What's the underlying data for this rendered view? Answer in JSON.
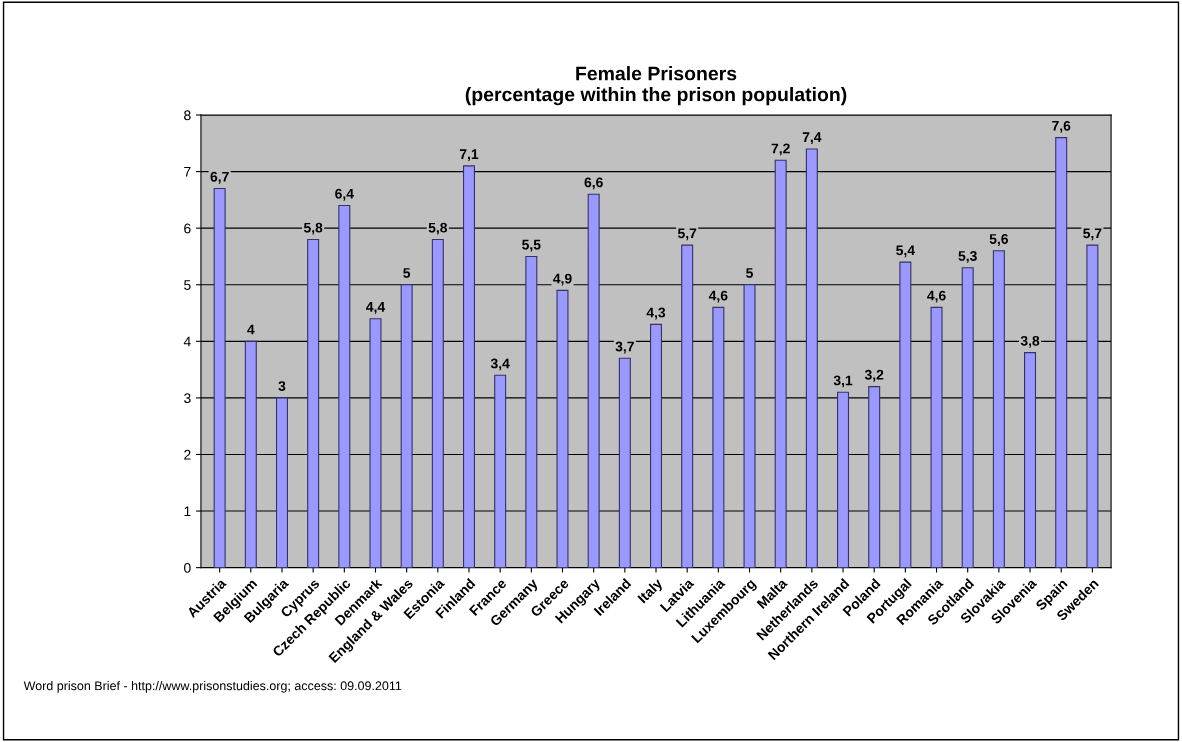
{
  "chart_data": {
    "type": "bar",
    "title": "Female Prisoners\n(percentage within the prison population)",
    "categories": [
      "Austria",
      "Belgium",
      "Bulgaria",
      "Cyprus",
      "Czech Republic",
      "Denmark",
      "England & Wales",
      "Estonia",
      "Finland",
      "France",
      "Germany",
      "Greece",
      "Hungary",
      "Ireland",
      "Italy",
      "Latvia",
      "Lithuania",
      "Luxembourg",
      "Malta",
      "Netherlands",
      "Northern Ireland",
      "Poland",
      "Portugal",
      "Romania",
      "Scotland",
      "Slovakia",
      "Slovenia",
      "Spain",
      "Sweden"
    ],
    "values": [
      6.7,
      4,
      3,
      5.8,
      6.4,
      4.4,
      5,
      5.8,
      7.1,
      3.4,
      5.5,
      4.9,
      6.6,
      3.7,
      4.3,
      5.7,
      4.6,
      5,
      7.2,
      7.4,
      3.1,
      3.2,
      5.4,
      4.6,
      5.3,
      5.6,
      3.8,
      7.6,
      5.7
    ],
    "value_labels": [
      "6,7",
      "4",
      "3",
      "5,8",
      "6,4",
      "4,4",
      "5",
      "5,8",
      "7,1",
      "3,4",
      "5,5",
      "4,9",
      "6,6",
      "3,7",
      "4,3",
      "5,7",
      "4,6",
      "5",
      "7,2",
      "7,4",
      "3,1",
      "3,2",
      "5,4",
      "4,6",
      "5,3",
      "5,6",
      "3,8",
      "7,6",
      "5,7"
    ],
    "color": "#9999ff",
    "ylim": [
      0,
      8
    ],
    "yticks": [
      0,
      1,
      2,
      3,
      4,
      5,
      6,
      7,
      8
    ],
    "grid": "y",
    "annotations": [
      "Word prison Brief - http://www.prisonstudies.org; access: 09.09.2011"
    ]
  }
}
